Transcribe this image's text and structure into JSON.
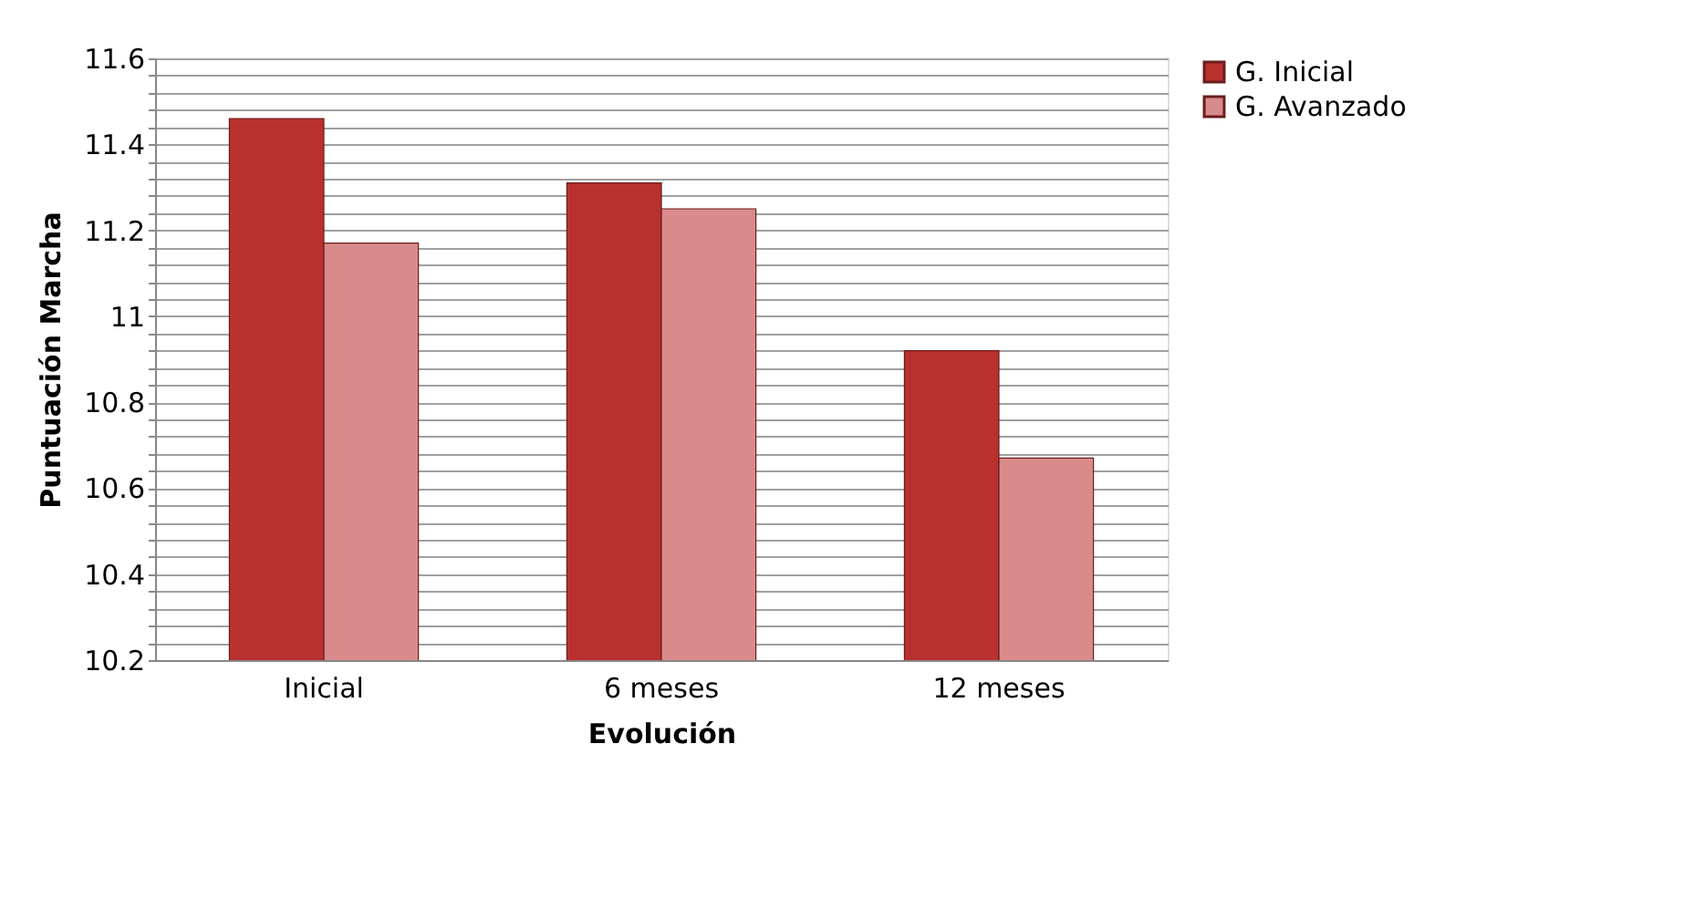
{
  "chart_data": {
    "type": "bar",
    "xlabel": "Evolución",
    "ylabel": "Puntuación Marcha",
    "categories": [
      "Inicial",
      "6 meses",
      "12 meses"
    ],
    "series": [
      {
        "name": "G. Inicial",
        "color": "#b8312f",
        "values": [
          11.46,
          11.31,
          10.92
        ]
      },
      {
        "name": "G. Avanzado",
        "color": "#d98b8b",
        "values": [
          11.17,
          11.25,
          10.67
        ]
      }
    ],
    "ylim": [
      10.2,
      11.6
    ],
    "yticks": [
      10.2,
      {
        "value": 10.24,
        "label": null
      },
      {
        "value": 10.28,
        "label": null
      },
      {
        "value": 10.32,
        "label": null
      },
      {
        "value": 10.36,
        "label": null
      },
      10.4,
      {
        "value": 10.44,
        "label": null
      },
      {
        "value": 10.48,
        "label": null
      },
      {
        "value": 10.52,
        "label": null
      },
      {
        "value": 10.56,
        "label": null
      },
      10.6,
      {
        "value": 10.64,
        "label": null
      },
      {
        "value": 10.68,
        "label": null
      },
      {
        "value": 10.72,
        "label": null
      },
      {
        "value": 10.76,
        "label": null
      },
      10.8,
      {
        "value": 10.84,
        "label": null
      },
      {
        "value": 10.88,
        "label": null
      },
      {
        "value": 10.92,
        "label": null
      },
      {
        "value": 10.96,
        "label": null
      },
      11,
      {
        "value": 11.04,
        "label": null
      },
      {
        "value": 11.08,
        "label": null
      },
      {
        "value": 11.12,
        "label": null
      },
      {
        "value": 11.16,
        "label": null
      },
      11.2,
      {
        "value": 11.24,
        "label": null
      },
      {
        "value": 11.28,
        "label": null
      },
      {
        "value": 11.32,
        "label": null
      },
      {
        "value": 11.36,
        "label": null
      },
      11.4,
      {
        "value": 11.44,
        "label": null
      },
      {
        "value": 11.48,
        "label": null
      },
      {
        "value": 11.52,
        "label": null
      },
      {
        "value": 11.56,
        "label": null
      },
      11.6
    ],
    "grid": "y",
    "legend": "right"
  }
}
